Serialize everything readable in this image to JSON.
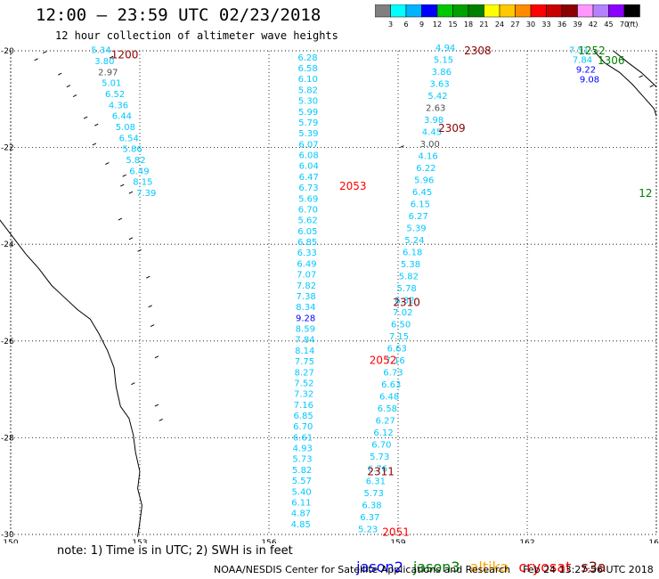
{
  "header": {
    "title": "12:00 – 23:59 UTC 02/23/2018",
    "subtitle": "12 hour collection of altimeter wave heights"
  },
  "colorbar": {
    "unit_label": "(ft)",
    "ticks": [
      "3",
      "6",
      "9",
      "12",
      "15",
      "18",
      "21",
      "24",
      "27",
      "30",
      "33",
      "36",
      "39",
      "42",
      "45",
      "70"
    ],
    "colors": [
      "#808080",
      "#00ffff",
      "#00b4ff",
      "#0000ff",
      "#00c800",
      "#00a000",
      "#008000",
      "#ffff00",
      "#ffc800",
      "#ff8c00",
      "#ff0000",
      "#c80000",
      "#8b0000",
      "#ff96ff",
      "#b482ff",
      "#8c00ff",
      "#000000"
    ]
  },
  "map": {
    "lon_labels": [
      "150",
      "153",
      "156",
      "159",
      "162",
      "165"
    ],
    "lat_labels": [
      "-20",
      "-22",
      "-24",
      "-26",
      "-28",
      "-30"
    ],
    "lon_range": [
      150,
      165
    ],
    "lat_range": [
      -30,
      -20
    ]
  },
  "passes": [
    {
      "label": "1200",
      "color": "#8b0000",
      "lon": 152.65,
      "lat": -20.08
    },
    {
      "label": "2308",
      "color": "#8b0000",
      "lon": 160.85,
      "lat": -20.0
    },
    {
      "label": "2309",
      "color": "#8b0000",
      "lon": 160.25,
      "lat": -21.6
    },
    {
      "label": "2053",
      "color": "#ff0000",
      "lon": 157.95,
      "lat": -22.8
    },
    {
      "label": "2310",
      "color": "#8b0000",
      "lon": 159.2,
      "lat": -25.2
    },
    {
      "label": "2052",
      "color": "#ff0000",
      "lon": 158.65,
      "lat": -26.4
    },
    {
      "label": "2311",
      "color": "#8b0000",
      "lon": 158.6,
      "lat": -28.7
    },
    {
      "label": "2051",
      "color": "#ff0000",
      "lon": 158.95,
      "lat": -29.95
    },
    {
      "label": "1252",
      "color": "#008000",
      "lon": 163.5,
      "lat": -20.0
    },
    {
      "label": "1306",
      "color": "#008000",
      "lon": 163.95,
      "lat": -20.2
    },
    {
      "label": "12",
      "color": "#008000",
      "lon": 164.75,
      "lat": -22.95
    }
  ],
  "tracks": [
    {
      "name": "track-1200",
      "color": "#00c8ff",
      "start_lon": 152.1,
      "start_lat": -20.05,
      "end_lon": 153.15,
      "end_lat": -23.0,
      "values": [
        "5.34",
        "3.80",
        "2.97",
        "5.01",
        "6.52",
        "4.36",
        "6.44",
        "5.08",
        "6.54",
        "5.86",
        "5.82",
        "6.49",
        "8.15",
        "7.39"
      ],
      "value_colors": {
        "2": "#505050"
      }
    },
    {
      "name": "track-2053",
      "color": "#00c8ff",
      "start_lon": 156.9,
      "start_lat": -20.2,
      "end_lon": 157.35,
      "end_lat": -22.65,
      "values": [
        "6.28",
        "6.58",
        "6.10",
        "5.82",
        "5.30",
        "5.99",
        "5.79",
        "5.39",
        "6.07",
        "6.08",
        "6.04",
        "6.47",
        "6.73",
        "5.69",
        "6.70",
        "5.62",
        "6.05",
        "6.85",
        "6.33",
        "6.49",
        "7.07",
        "7.82",
        "7.38",
        "8.34",
        "9.28",
        "8.59",
        "7.84",
        "8.14",
        "7.75",
        "8.27",
        "7.52",
        "7.32",
        "7.16",
        "6.85",
        "6.70",
        "6.61",
        "4.93",
        "5.73",
        "5.82",
        "5.57",
        "5.40",
        "6.11",
        "4.87",
        "4.85"
      ],
      "end_lat_override": -29.85,
      "end_lon_override": 156.65,
      "value_colors": {
        "24": "#0000ff"
      }
    },
    {
      "name": "track-2310",
      "color": "#00c8ff",
      "start_lon": 160.1,
      "start_lat": -20.0,
      "end_lon": 158.3,
      "end_lat": -29.95,
      "values": [
        "4.94",
        "5.15",
        "3.86",
        "3.63",
        "5.42",
        "2.63",
        "3.98",
        "4.45",
        "3.00",
        "4.16",
        "6.22",
        "5.96",
        "6.45",
        "6.15",
        "6.27",
        "5.39",
        "5.24",
        "6.18",
        "5.38",
        "5.82",
        "5.78",
        "6.32",
        "7.02",
        "6.50",
        "7.15",
        "6.63",
        "7.16",
        "6.73",
        "6.63",
        "6.48",
        "6.58",
        "6.27",
        "6.12",
        "6.70",
        "5.73",
        "6.76",
        "6.31",
        "5.73",
        "6.38",
        "6.37",
        "5.23"
      ],
      "value_colors": {
        "5": "#505050",
        "8": "#505050"
      }
    }
  ]
}
